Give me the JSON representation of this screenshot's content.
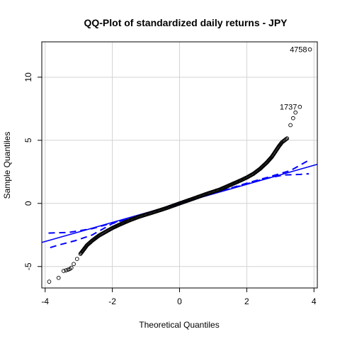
{
  "chart_data": {
    "type": "scatter",
    "title": "QQ-Plot of standardized daily returns - JPY",
    "xlabel": "Theoretical Quantiles",
    "ylabel": "Sample Quantiles",
    "xlim": [
      -4.1,
      4.1
    ],
    "ylim": [
      -6.7,
      12.8
    ],
    "x_ticks": [
      -4,
      -2,
      0,
      2,
      4
    ],
    "y_ticks": [
      -5,
      0,
      5,
      10
    ],
    "x_tick_labels": [
      "-4",
      "-2",
      "0",
      "2",
      "4"
    ],
    "y_tick_labels": [
      "-5",
      "0",
      "5",
      "10"
    ],
    "grid": true,
    "annotations": [
      {
        "text": "4758",
        "x": 3.88,
        "y": 12.2
      },
      {
        "text": "1737",
        "x": 3.58,
        "y": 7.65
      }
    ],
    "series": [
      {
        "kind": "points",
        "marker": "open-circle",
        "color": "#000000",
        "x": [
          -3.88,
          -3.6,
          -3.45,
          -3.38,
          -3.32,
          -3.27,
          -3.22,
          -3.15,
          -3.05,
          -2.95,
          -2.85,
          -2.75,
          -2.6,
          -2.4,
          -2.2,
          -2.0,
          -1.8,
          -1.5,
          -1.2,
          -0.8,
          -0.4,
          0.0,
          0.4,
          0.8,
          1.2,
          1.5,
          1.8,
          2.0,
          2.2,
          2.4,
          2.6,
          2.75,
          2.85,
          2.95,
          3.05,
          3.1,
          3.15,
          3.2,
          3.3,
          3.38,
          3.45,
          3.58,
          3.88
        ],
        "y": [
          -6.2,
          -5.9,
          -5.35,
          -5.3,
          -5.25,
          -5.2,
          -5.1,
          -4.8,
          -4.4,
          -4.0,
          -3.65,
          -3.3,
          -2.95,
          -2.55,
          -2.25,
          -1.95,
          -1.7,
          -1.35,
          -1.05,
          -0.72,
          -0.38,
          0.0,
          0.37,
          0.75,
          1.1,
          1.45,
          1.8,
          2.05,
          2.35,
          2.75,
          3.25,
          3.7,
          4.1,
          4.5,
          4.85,
          4.95,
          5.05,
          5.15,
          6.2,
          6.75,
          7.2,
          7.65,
          12.2
        ]
      },
      {
        "kind": "line",
        "style": "solid",
        "color": "#0000ff",
        "x": [
          -4.2,
          4.2
        ],
        "y": [
          -3.17,
          3.17
        ]
      },
      {
        "kind": "line",
        "style": "dashed",
        "color": "#0000ff",
        "x": [
          -3.9,
          -3.3,
          -2.6,
          -2.0,
          -1.0,
          0.0,
          1.0,
          2.0,
          2.6,
          3.1,
          3.6,
          3.85
        ],
        "y": [
          -2.35,
          -2.3,
          -2.0,
          -1.55,
          -0.78,
          0.0,
          0.78,
          1.55,
          2.0,
          2.25,
          2.3,
          2.35
        ]
      },
      {
        "kind": "line",
        "style": "dashed",
        "color": "#0000ff",
        "x": [
          -3.85,
          -3.6,
          -3.1,
          -2.6,
          -2.0,
          -1.0,
          0.0,
          1.0,
          2.0,
          2.6,
          3.3,
          3.9
        ],
        "y": [
          -3.5,
          -3.3,
          -2.95,
          -2.5,
          -1.6,
          -0.78,
          0.0,
          0.78,
          1.6,
          2.05,
          2.6,
          3.5
        ]
      }
    ]
  }
}
